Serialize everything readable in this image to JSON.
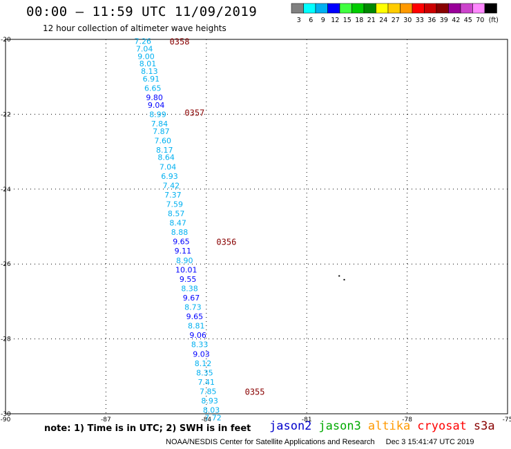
{
  "header": {
    "title": "00:00 – 11:59 UTC 11/09/2019",
    "subtitle": "12 hour collection of altimeter wave heights"
  },
  "legend": {
    "bins": [
      {
        "label": "3",
        "color": "#808080"
      },
      {
        "label": "6",
        "color": "#00ffff"
      },
      {
        "label": "9",
        "color": "#00b0f0"
      },
      {
        "label": "12",
        "color": "#0000ff"
      },
      {
        "label": "15",
        "color": "#40ff40"
      },
      {
        "label": "18",
        "color": "#00cc00"
      },
      {
        "label": "21",
        "color": "#008800"
      },
      {
        "label": "24",
        "color": "#ffff00"
      },
      {
        "label": "27",
        "color": "#ffcc00"
      },
      {
        "label": "30",
        "color": "#ff9900"
      },
      {
        "label": "33",
        "color": "#ff0000"
      },
      {
        "label": "36",
        "color": "#cc0000"
      },
      {
        "label": "39",
        "color": "#880000"
      },
      {
        "label": "42",
        "color": "#990099"
      },
      {
        "label": "45",
        "color": "#cc44cc"
      },
      {
        "label": "70",
        "color": "#ff88ff"
      },
      {
        "label": "(ft)",
        "color": "#000000"
      }
    ]
  },
  "chart_data": {
    "type": "scatter",
    "title": "12 hour collection of altimeter wave heights",
    "xlabel": "",
    "ylabel": "",
    "xlim": [
      -90,
      -75
    ],
    "ylim": [
      -30,
      -20
    ],
    "x_ticks": [
      -90,
      -87,
      -84,
      -81,
      -78,
      -75
    ],
    "y_ticks": [
      -20,
      -22,
      -24,
      -26,
      -28,
      -30
    ],
    "grid": true,
    "points": [
      {
        "lon": -85.9,
        "lat": -20.05,
        "swh": "7.26",
        "color": "#00b0f0"
      },
      {
        "lon": -85.85,
        "lat": -20.25,
        "swh": "7.04",
        "color": "#00b0f0"
      },
      {
        "lon": -85.8,
        "lat": -20.45,
        "swh": "9.00",
        "color": "#00b0f0"
      },
      {
        "lon": -85.75,
        "lat": -20.65,
        "swh": "8.01",
        "color": "#00b0f0"
      },
      {
        "lon": -85.7,
        "lat": -20.85,
        "swh": "8.13",
        "color": "#00b0f0"
      },
      {
        "lon": -85.65,
        "lat": -21.05,
        "swh": "6.91",
        "color": "#00b0f0"
      },
      {
        "lon": -85.6,
        "lat": -21.3,
        "swh": "6.65",
        "color": "#00b0f0"
      },
      {
        "lon": -85.55,
        "lat": -21.55,
        "swh": "9.80",
        "color": "#0000ff"
      },
      {
        "lon": -85.5,
        "lat": -21.75,
        "swh": "9.04",
        "color": "#0000ff"
      },
      {
        "lon": -85.45,
        "lat": -22.0,
        "swh": "8.99",
        "color": "#00b0f0"
      },
      {
        "lon": -85.4,
        "lat": -22.25,
        "swh": "7.84",
        "color": "#00b0f0"
      },
      {
        "lon": -85.35,
        "lat": -22.45,
        "swh": "7.87",
        "color": "#00b0f0"
      },
      {
        "lon": -85.3,
        "lat": -22.7,
        "swh": "7.60",
        "color": "#00b0f0"
      },
      {
        "lon": -85.25,
        "lat": -22.95,
        "swh": "8.17",
        "color": "#00b0f0"
      },
      {
        "lon": -85.2,
        "lat": -23.15,
        "swh": "8.64",
        "color": "#00b0f0"
      },
      {
        "lon": -85.15,
        "lat": -23.4,
        "swh": "7.04",
        "color": "#00b0f0"
      },
      {
        "lon": -85.1,
        "lat": -23.65,
        "swh": "6.93",
        "color": "#00b0f0"
      },
      {
        "lon": -85.05,
        "lat": -23.9,
        "swh": "7.42",
        "color": "#00b0f0"
      },
      {
        "lon": -85.0,
        "lat": -24.15,
        "swh": "7.37",
        "color": "#00b0f0"
      },
      {
        "lon": -84.95,
        "lat": -24.4,
        "swh": "7.59",
        "color": "#00b0f0"
      },
      {
        "lon": -84.9,
        "lat": -24.65,
        "swh": "8.57",
        "color": "#00b0f0"
      },
      {
        "lon": -84.85,
        "lat": -24.9,
        "swh": "8.47",
        "color": "#00b0f0"
      },
      {
        "lon": -84.8,
        "lat": -25.15,
        "swh": "8.88",
        "color": "#00b0f0"
      },
      {
        "lon": -84.75,
        "lat": -25.4,
        "swh": "9.65",
        "color": "#0000ff"
      },
      {
        "lon": -84.7,
        "lat": -25.65,
        "swh": "9.11",
        "color": "#0000ff"
      },
      {
        "lon": -84.65,
        "lat": -25.9,
        "swh": "8.90",
        "color": "#00b0f0"
      },
      {
        "lon": -84.6,
        "lat": -26.15,
        "swh": "10.01",
        "color": "#0000ff"
      },
      {
        "lon": -84.55,
        "lat": -26.4,
        "swh": "9.55",
        "color": "#0000ff"
      },
      {
        "lon": -84.5,
        "lat": -26.65,
        "swh": "8.38",
        "color": "#00b0f0"
      },
      {
        "lon": -84.45,
        "lat": -26.9,
        "swh": "9.67",
        "color": "#0000ff"
      },
      {
        "lon": -84.4,
        "lat": -27.15,
        "swh": "8.73",
        "color": "#00b0f0"
      },
      {
        "lon": -84.35,
        "lat": -27.4,
        "swh": "9.65",
        "color": "#0000ff"
      },
      {
        "lon": -84.3,
        "lat": -27.65,
        "swh": "8.81",
        "color": "#00b0f0"
      },
      {
        "lon": -84.25,
        "lat": -27.9,
        "swh": "9.06",
        "color": "#0000ff"
      },
      {
        "lon": -84.2,
        "lat": -28.15,
        "swh": "8.33",
        "color": "#00b0f0"
      },
      {
        "lon": -84.15,
        "lat": -28.4,
        "swh": "9.03",
        "color": "#0000ff"
      },
      {
        "lon": -84.1,
        "lat": -28.65,
        "swh": "8.12",
        "color": "#00b0f0"
      },
      {
        "lon": -84.05,
        "lat": -28.9,
        "swh": "8.35",
        "color": "#00b0f0"
      },
      {
        "lon": -84.0,
        "lat": -29.15,
        "swh": "7.41",
        "color": "#00b0f0"
      },
      {
        "lon": -83.95,
        "lat": -29.4,
        "swh": "7.85",
        "color": "#00b0f0"
      },
      {
        "lon": -83.9,
        "lat": -29.65,
        "swh": "8.93",
        "color": "#00b0f0"
      },
      {
        "lon": -83.85,
        "lat": -29.9,
        "swh": "8.03",
        "color": "#00b0f0"
      },
      {
        "lon": -83.8,
        "lat": -30.1,
        "swh": "7.72",
        "color": "#00b0f0"
      }
    ],
    "time_labels": [
      {
        "lon": -84.8,
        "lat": -20.05,
        "text": "0358"
      },
      {
        "lon": -84.35,
        "lat": -21.95,
        "text": "0357"
      },
      {
        "lon": -83.4,
        "lat": -25.4,
        "text": "0356"
      },
      {
        "lon": -82.55,
        "lat": -29.4,
        "text": "0355"
      }
    ],
    "time_label_color": "#880000",
    "dots": [
      {
        "lon": -80.05,
        "lat": -26.3
      },
      {
        "lon": -79.9,
        "lat": -26.4
      }
    ]
  },
  "footer": {
    "note": "note: 1) Time is in UTC; 2) SWH is in feet",
    "satellites": [
      {
        "name": "jason2",
        "color": "#0000cc"
      },
      {
        "name": "jason3",
        "color": "#00aa00"
      },
      {
        "name": "altika",
        "color": "#ff9900"
      },
      {
        "name": "cryosat",
        "color": "#ff0000"
      },
      {
        "name": "s3a",
        "color": "#880000"
      }
    ],
    "credit": "NOAA/NESDIS Center for Satellite Applications and Research",
    "timestamp": "Dec  3 15:41:47 UTC 2019"
  }
}
